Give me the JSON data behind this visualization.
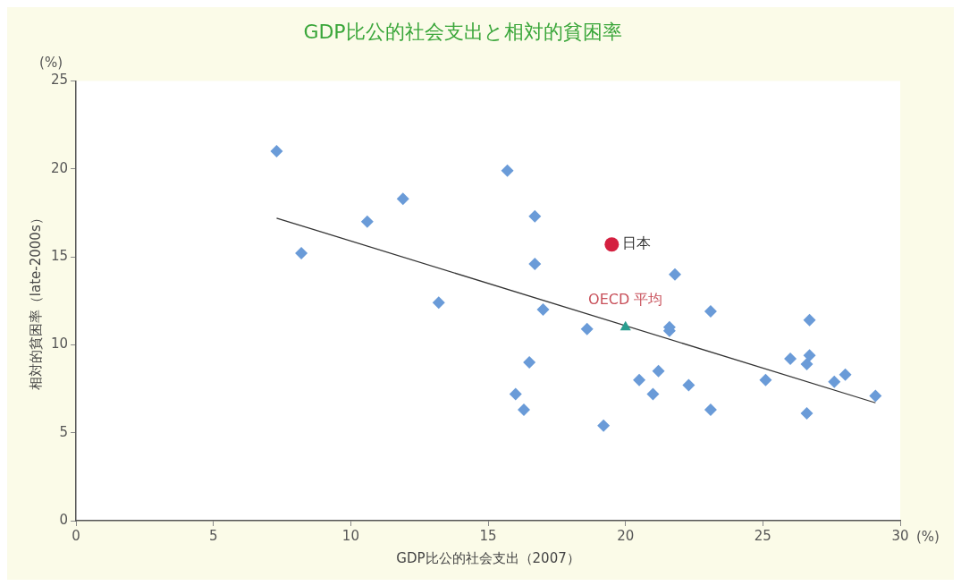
{
  "chart_data": {
    "type": "scatter",
    "title": "GDP比公的社会支出と相対的貧困率",
    "xlabel": "GDP比公的社会支出（2007）",
    "ylabel": "相対的貧困率（late-2000s）",
    "annotations": [
      "(%)",
      "(%)"
    ],
    "xlim": [
      0,
      30
    ],
    "xticks": [
      0,
      5,
      10,
      15,
      20,
      25,
      30
    ],
    "ylim": [
      0,
      25
    ],
    "yticks": [
      0,
      5,
      10,
      15,
      20,
      25
    ],
    "grid": false,
    "legend": false,
    "series": [
      {
        "type": "scatter",
        "color": "#6a9bd8",
        "marker": "diamond",
        "x": [
          7.3,
          8.2,
          10.6,
          11.9,
          13.2,
          15.7,
          16.7,
          16.7,
          17.0,
          16.5,
          16.0,
          16.3,
          18.6,
          19.2,
          20.5,
          21.0,
          21.2,
          21.6,
          21.6,
          21.8,
          22.3,
          23.1,
          23.1,
          25.1,
          26.0,
          26.6,
          26.7,
          26.7,
          26.6,
          27.6,
          28.0,
          29.1
        ],
        "values": [
          21.0,
          15.2,
          17.0,
          18.3,
          12.4,
          19.9,
          17.3,
          14.6,
          12.0,
          9.0,
          7.2,
          6.3,
          10.9,
          5.4,
          8.0,
          7.2,
          8.5,
          10.8,
          11.0,
          14.0,
          7.7,
          11.9,
          6.3,
          8.0,
          9.2,
          8.9,
          9.4,
          11.4,
          6.1,
          7.9,
          8.3,
          7.1
        ]
      },
      {
        "type": "scatter",
        "name": "日本",
        "color": "#d42040",
        "marker": "circle",
        "x": [
          19.5
        ],
        "values": [
          15.7
        ]
      },
      {
        "type": "scatter",
        "name": "OECD 平均",
        "color": "#2a9d8f",
        "marker": "triangle",
        "x": [
          20.0
        ],
        "values": [
          11.0
        ]
      },
      {
        "type": "line",
        "color": "#333333",
        "marker": "none",
        "line_style": "solid",
        "x": [
          7.3,
          29.1
        ],
        "values": [
          17.2,
          6.7
        ]
      }
    ]
  }
}
